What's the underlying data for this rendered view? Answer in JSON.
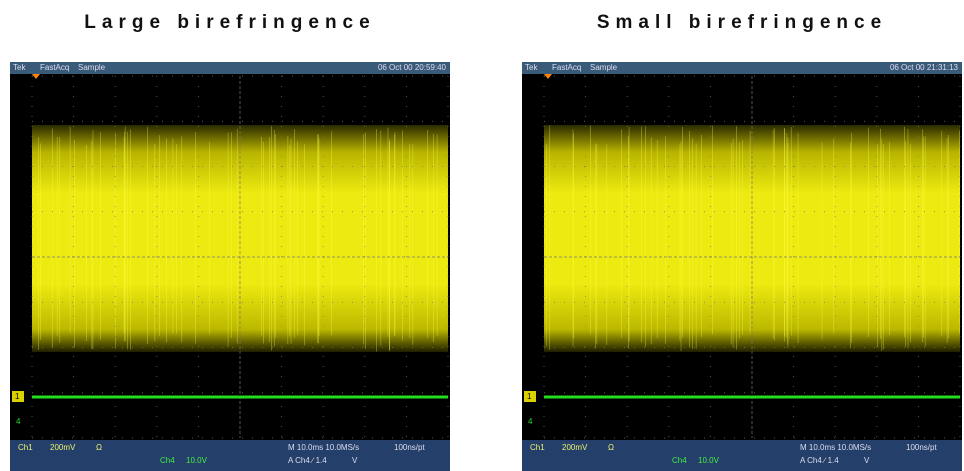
{
  "panels": [
    {
      "title": "Large birefringence",
      "header": {
        "brand": "Tek",
        "mode": "FastAcq",
        "acquisition": "Sample",
        "timestamp": "06 Oct 00 20:59:40"
      },
      "markers": {
        "ch1": "1",
        "ch4": "4"
      },
      "footer": {
        "ch1": "Ch1",
        "ch1_scale": "200mV",
        "ch1_impedance": "Ω",
        "ch4": "Ch4",
        "ch4_scale": "10.0V",
        "timebase": "M 10.0ms 10.0MS/s",
        "trigger": "A Ch4 ∕ 1.4",
        "trigger_unit": "V",
        "record": "100ns/pt"
      }
    },
    {
      "title": "Small birefringence",
      "header": {
        "brand": "Tek",
        "mode": "FastAcq",
        "acquisition": "Sample",
        "timestamp": "06 Oct 00 21:31:13"
      },
      "markers": {
        "ch1": "1",
        "ch4": "4"
      },
      "footer": {
        "ch1": "Ch1",
        "ch1_scale": "200mV",
        "ch1_impedance": "Ω",
        "ch4": "Ch4",
        "ch4_scale": "10.0V",
        "timebase": "M 10.0ms 10.0MS/s",
        "trigger": "A Ch4 ∕ 1.4",
        "trigger_unit": "V",
        "record": "100ns/pt"
      }
    }
  ]
}
